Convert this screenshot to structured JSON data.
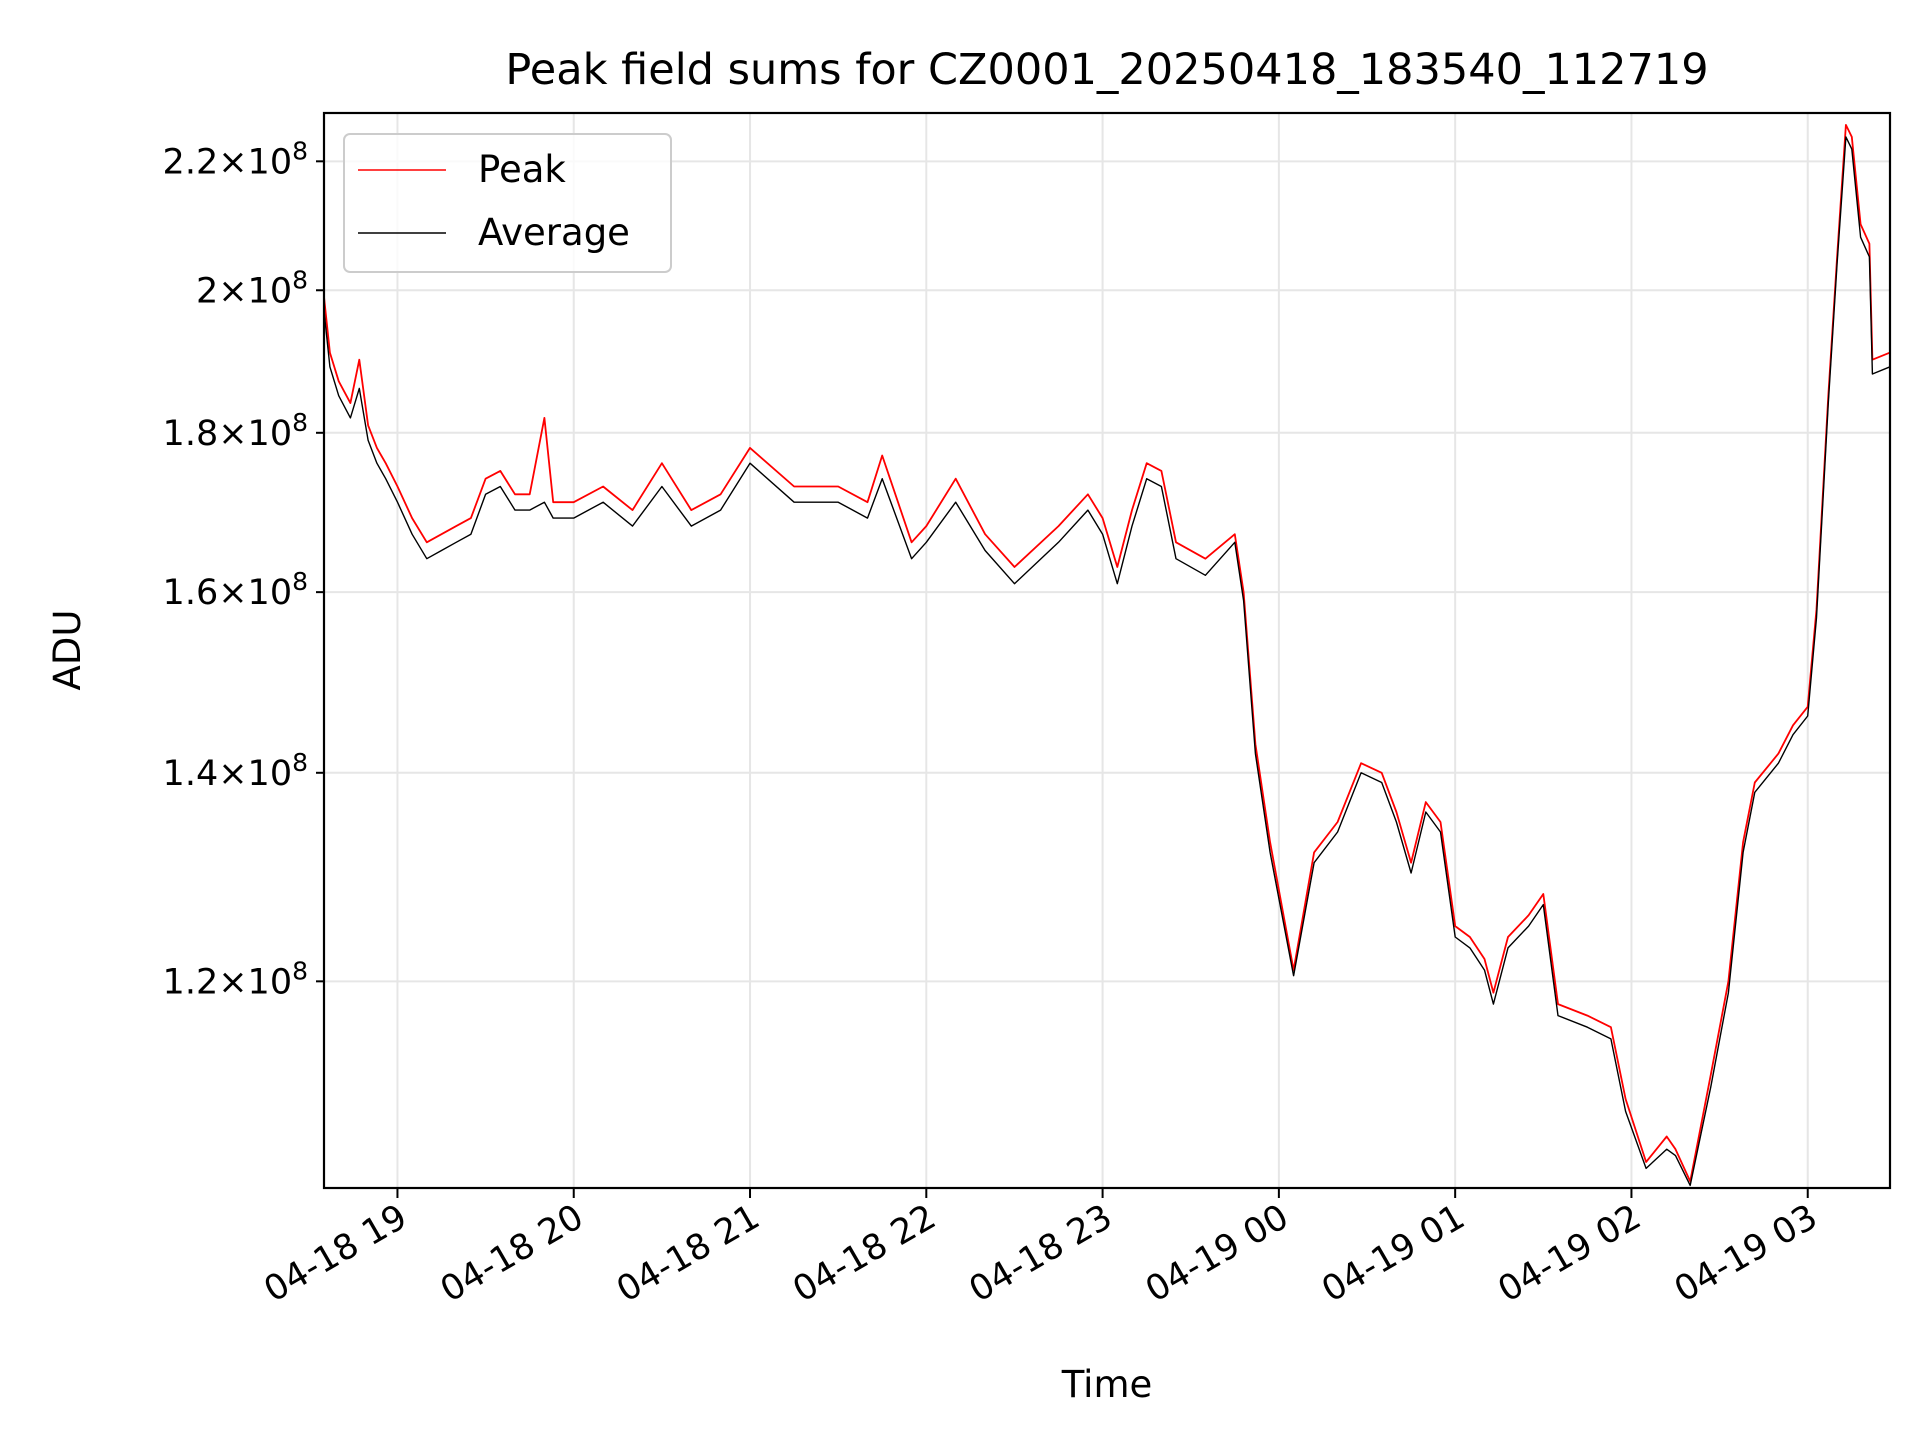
{
  "chart_data": {
    "type": "line",
    "title": "Peak field sums for CZ0001_20250418_183540_112719",
    "xlabel": "Time",
    "ylabel": "ADU",
    "yscale": "log",
    "grid": true,
    "legend_position": "upper-left",
    "xlim": [
      "2025-04-18 18:35",
      "2025-04-19 03:28"
    ],
    "ylim": [
      103000000,
      228000000
    ],
    "x_ticks": [
      {
        "t": "2025-04-18 19:00",
        "label": "04-18 19"
      },
      {
        "t": "2025-04-18 20:00",
        "label": "04-18 20"
      },
      {
        "t": "2025-04-18 21:00",
        "label": "04-18 21"
      },
      {
        "t": "2025-04-18 22:00",
        "label": "04-18 22"
      },
      {
        "t": "2025-04-18 23:00",
        "label": "04-18 23"
      },
      {
        "t": "2025-04-19 00:00",
        "label": "04-19 00"
      },
      {
        "t": "2025-04-19 01:00",
        "label": "04-19 01"
      },
      {
        "t": "2025-04-19 02:00",
        "label": "04-19 02"
      },
      {
        "t": "2025-04-19 03:00",
        "label": "04-19 03"
      }
    ],
    "y_ticks": [
      {
        "value": 120000000,
        "mantissa": "1.2",
        "exponent": "8"
      },
      {
        "value": 140000000,
        "mantissa": "1.4",
        "exponent": "8"
      },
      {
        "value": 160000000,
        "mantissa": "1.6",
        "exponent": "8"
      },
      {
        "value": 180000000,
        "mantissa": "1.8",
        "exponent": "8"
      },
      {
        "value": 200000000,
        "mantissa": "2",
        "exponent": "8"
      },
      {
        "value": 220000000,
        "mantissa": "2.2",
        "exponent": "8"
      }
    ],
    "series": [
      {
        "name": "Peak",
        "color": "#ff0000",
        "points": [
          [
            "2025-04-18 18:35",
            199000000
          ],
          [
            "2025-04-18 18:37",
            191000000
          ],
          [
            "2025-04-18 18:40",
            187000000
          ],
          [
            "2025-04-18 18:44",
            184000000
          ],
          [
            "2025-04-18 18:47",
            190000000
          ],
          [
            "2025-04-18 18:50",
            181000000
          ],
          [
            "2025-04-18 18:53",
            178000000
          ],
          [
            "2025-04-18 18:56",
            176000000
          ],
          [
            "2025-04-18 19:00",
            173000000
          ],
          [
            "2025-04-18 19:05",
            169000000
          ],
          [
            "2025-04-18 19:10",
            166000000
          ],
          [
            "2025-04-18 19:15",
            167000000
          ],
          [
            "2025-04-18 19:20",
            168000000
          ],
          [
            "2025-04-18 19:25",
            169000000
          ],
          [
            "2025-04-18 19:30",
            174000000
          ],
          [
            "2025-04-18 19:35",
            175000000
          ],
          [
            "2025-04-18 19:40",
            172000000
          ],
          [
            "2025-04-18 19:45",
            172000000
          ],
          [
            "2025-04-18 19:50",
            182000000
          ],
          [
            "2025-04-18 19:53",
            171000000
          ],
          [
            "2025-04-18 20:00",
            171000000
          ],
          [
            "2025-04-18 20:10",
            173000000
          ],
          [
            "2025-04-18 20:20",
            170000000
          ],
          [
            "2025-04-18 20:30",
            176000000
          ],
          [
            "2025-04-18 20:40",
            170000000
          ],
          [
            "2025-04-18 20:50",
            172000000
          ],
          [
            "2025-04-18 21:00",
            178000000
          ],
          [
            "2025-04-18 21:15",
            173000000
          ],
          [
            "2025-04-18 21:30",
            173000000
          ],
          [
            "2025-04-18 21:40",
            171000000
          ],
          [
            "2025-04-18 21:45",
            177000000
          ],
          [
            "2025-04-18 21:55",
            166000000
          ],
          [
            "2025-04-18 22:00",
            168000000
          ],
          [
            "2025-04-18 22:10",
            174000000
          ],
          [
            "2025-04-18 22:20",
            167000000
          ],
          [
            "2025-04-18 22:30",
            163000000
          ],
          [
            "2025-04-18 22:45",
            168000000
          ],
          [
            "2025-04-18 22:55",
            172000000
          ],
          [
            "2025-04-18 23:00",
            169000000
          ],
          [
            "2025-04-18 23:05",
            163000000
          ],
          [
            "2025-04-18 23:10",
            170000000
          ],
          [
            "2025-04-18 23:15",
            176000000
          ],
          [
            "2025-04-18 23:20",
            175000000
          ],
          [
            "2025-04-18 23:25",
            166000000
          ],
          [
            "2025-04-18 23:35",
            164000000
          ],
          [
            "2025-04-18 23:45",
            167000000
          ],
          [
            "2025-04-18 23:48",
            160000000
          ],
          [
            "2025-04-18 23:52",
            143000000
          ],
          [
            "2025-04-18 23:57",
            133000000
          ],
          [
            "2025-04-19 00:05",
            121000000
          ],
          [
            "2025-04-19 00:12",
            132000000
          ],
          [
            "2025-04-19 00:20",
            135000000
          ],
          [
            "2025-04-19 00:28",
            141000000
          ],
          [
            "2025-04-19 00:35",
            140000000
          ],
          [
            "2025-04-19 00:40",
            136000000
          ],
          [
            "2025-04-19 00:45",
            131000000
          ],
          [
            "2025-04-19 00:50",
            137000000
          ],
          [
            "2025-04-19 00:55",
            135000000
          ],
          [
            "2025-04-19 01:00",
            125000000
          ],
          [
            "2025-04-19 01:05",
            124000000
          ],
          [
            "2025-04-19 01:10",
            122000000
          ],
          [
            "2025-04-19 01:13",
            119000000
          ],
          [
            "2025-04-19 01:18",
            124000000
          ],
          [
            "2025-04-19 01:25",
            126000000
          ],
          [
            "2025-04-19 01:30",
            128000000
          ],
          [
            "2025-04-19 01:35",
            118000000
          ],
          [
            "2025-04-19 01:45",
            117000000
          ],
          [
            "2025-04-19 01:53",
            116000000
          ],
          [
            "2025-04-19 01:58",
            110000000
          ],
          [
            "2025-04-19 02:05",
            105000000
          ],
          [
            "2025-04-19 02:12",
            107000000
          ],
          [
            "2025-04-19 02:15",
            106000000
          ],
          [
            "2025-04-19 02:20",
            103500000
          ],
          [
            "2025-04-19 02:27",
            112000000
          ],
          [
            "2025-04-19 02:33",
            120000000
          ],
          [
            "2025-04-19 02:38",
            133000000
          ],
          [
            "2025-04-19 02:42",
            139000000
          ],
          [
            "2025-04-19 02:50",
            142000000
          ],
          [
            "2025-04-19 02:55",
            145000000
          ],
          [
            "2025-04-19 03:00",
            147000000
          ],
          [
            "2025-04-19 03:03",
            158000000
          ],
          [
            "2025-04-19 03:07",
            185000000
          ],
          [
            "2025-04-19 03:10",
            205000000
          ],
          [
            "2025-04-19 03:13",
            226000000
          ],
          [
            "2025-04-19 03:15",
            224000000
          ],
          [
            "2025-04-19 03:18",
            210000000
          ],
          [
            "2025-04-19 03:21",
            207000000
          ],
          [
            "2025-04-19 03:22",
            190000000
          ],
          [
            "2025-04-19 03:28",
            191000000
          ]
        ]
      },
      {
        "name": "Average",
        "color": "#000000",
        "points": [
          [
            "2025-04-18 18:35",
            197000000
          ],
          [
            "2025-04-18 18:37",
            189000000
          ],
          [
            "2025-04-18 18:40",
            185000000
          ],
          [
            "2025-04-18 18:44",
            182000000
          ],
          [
            "2025-04-18 18:47",
            186000000
          ],
          [
            "2025-04-18 18:50",
            179000000
          ],
          [
            "2025-04-18 18:53",
            176000000
          ],
          [
            "2025-04-18 18:56",
            174000000
          ],
          [
            "2025-04-18 19:00",
            171000000
          ],
          [
            "2025-04-18 19:05",
            167000000
          ],
          [
            "2025-04-18 19:10",
            164000000
          ],
          [
            "2025-04-18 19:15",
            165000000
          ],
          [
            "2025-04-18 19:20",
            166000000
          ],
          [
            "2025-04-18 19:25",
            167000000
          ],
          [
            "2025-04-18 19:30",
            172000000
          ],
          [
            "2025-04-18 19:35",
            173000000
          ],
          [
            "2025-04-18 19:40",
            170000000
          ],
          [
            "2025-04-18 19:45",
            170000000
          ],
          [
            "2025-04-18 19:50",
            171000000
          ],
          [
            "2025-04-18 19:53",
            169000000
          ],
          [
            "2025-04-18 20:00",
            169000000
          ],
          [
            "2025-04-18 20:10",
            171000000
          ],
          [
            "2025-04-18 20:20",
            168000000
          ],
          [
            "2025-04-18 20:30",
            173000000
          ],
          [
            "2025-04-18 20:40",
            168000000
          ],
          [
            "2025-04-18 20:50",
            170000000
          ],
          [
            "2025-04-18 21:00",
            176000000
          ],
          [
            "2025-04-18 21:15",
            171000000
          ],
          [
            "2025-04-18 21:30",
            171000000
          ],
          [
            "2025-04-18 21:40",
            169000000
          ],
          [
            "2025-04-18 21:45",
            174000000
          ],
          [
            "2025-04-18 21:55",
            164000000
          ],
          [
            "2025-04-18 22:00",
            166000000
          ],
          [
            "2025-04-18 22:10",
            171000000
          ],
          [
            "2025-04-18 22:20",
            165000000
          ],
          [
            "2025-04-18 22:30",
            161000000
          ],
          [
            "2025-04-18 22:45",
            166000000
          ],
          [
            "2025-04-18 22:55",
            170000000
          ],
          [
            "2025-04-18 23:00",
            167000000
          ],
          [
            "2025-04-18 23:05",
            161000000
          ],
          [
            "2025-04-18 23:10",
            168000000
          ],
          [
            "2025-04-18 23:15",
            174000000
          ],
          [
            "2025-04-18 23:20",
            173000000
          ],
          [
            "2025-04-18 23:25",
            164000000
          ],
          [
            "2025-04-18 23:35",
            162000000
          ],
          [
            "2025-04-18 23:45",
            166000000
          ],
          [
            "2025-04-18 23:48",
            159000000
          ],
          [
            "2025-04-18 23:52",
            142000000
          ],
          [
            "2025-04-18 23:57",
            132000000
          ],
          [
            "2025-04-19 00:05",
            120500000
          ],
          [
            "2025-04-19 00:12",
            131000000
          ],
          [
            "2025-04-19 00:20",
            134000000
          ],
          [
            "2025-04-19 00:28",
            140000000
          ],
          [
            "2025-04-19 00:35",
            139000000
          ],
          [
            "2025-04-19 00:40",
            135000000
          ],
          [
            "2025-04-19 00:45",
            130000000
          ],
          [
            "2025-04-19 00:50",
            136000000
          ],
          [
            "2025-04-19 00:55",
            134000000
          ],
          [
            "2025-04-19 01:00",
            124000000
          ],
          [
            "2025-04-19 01:05",
            123000000
          ],
          [
            "2025-04-19 01:10",
            121000000
          ],
          [
            "2025-04-19 01:13",
            118000000
          ],
          [
            "2025-04-19 01:18",
            123000000
          ],
          [
            "2025-04-19 01:25",
            125000000
          ],
          [
            "2025-04-19 01:30",
            127000000
          ],
          [
            "2025-04-19 01:35",
            117000000
          ],
          [
            "2025-04-19 01:45",
            116000000
          ],
          [
            "2025-04-19 01:53",
            115000000
          ],
          [
            "2025-04-19 01:58",
            109000000
          ],
          [
            "2025-04-19 02:05",
            104500000
          ],
          [
            "2025-04-19 02:12",
            106000000
          ],
          [
            "2025-04-19 02:15",
            105500000
          ],
          [
            "2025-04-19 02:20",
            103200000
          ],
          [
            "2025-04-19 02:27",
            111000000
          ],
          [
            "2025-04-19 02:33",
            119000000
          ],
          [
            "2025-04-19 02:38",
            132000000
          ],
          [
            "2025-04-19 02:42",
            138000000
          ],
          [
            "2025-04-19 02:50",
            141000000
          ],
          [
            "2025-04-19 02:55",
            144000000
          ],
          [
            "2025-04-19 03:00",
            146000000
          ],
          [
            "2025-04-19 03:03",
            157000000
          ],
          [
            "2025-04-19 03:07",
            184000000
          ],
          [
            "2025-04-19 03:10",
            204000000
          ],
          [
            "2025-04-19 03:13",
            224000000
          ],
          [
            "2025-04-19 03:15",
            222000000
          ],
          [
            "2025-04-19 03:18",
            208000000
          ],
          [
            "2025-04-19 03:21",
            205000000
          ],
          [
            "2025-04-19 03:22",
            188000000
          ],
          [
            "2025-04-19 03:28",
            189000000
          ]
        ]
      }
    ]
  }
}
